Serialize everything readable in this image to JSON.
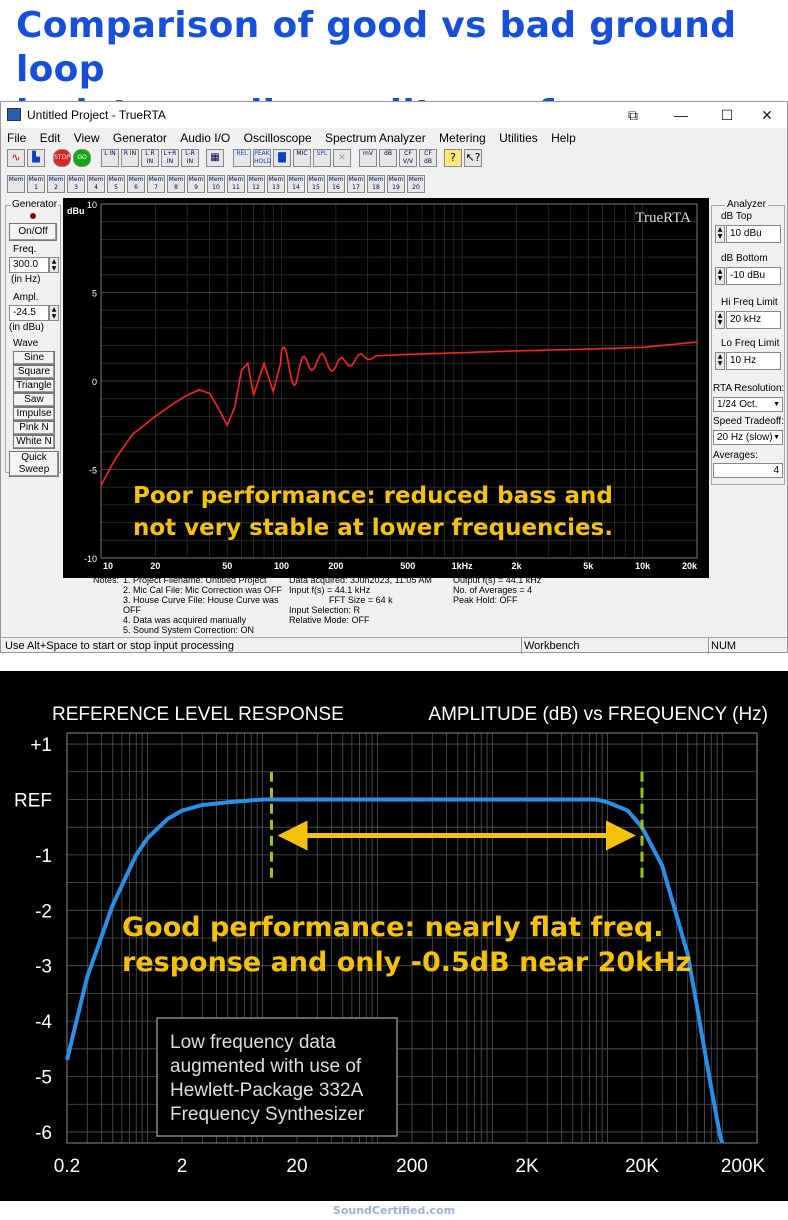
{
  "headline": {
    "line1": "Comparison of good vs bad ground loop",
    "line2": "isolator audio quality performance"
  },
  "window": {
    "title": "Untitled Project - TrueRTA",
    "controls": {
      "minimize": "—",
      "maximize": "☐",
      "close": "✕"
    },
    "menu": [
      "File",
      "Edit",
      "View",
      "Generator",
      "Audio I/O",
      "Oscilloscope",
      "Spectrum Analyzer",
      "Metering",
      "Utilities",
      "Help"
    ],
    "toolbar": [
      "L IN",
      "R IN",
      "L R IN",
      "L+R IN",
      "L-R IN",
      "REL",
      "PEAK HOLD",
      "SPL",
      "mV",
      "dB",
      "CF V/V",
      "CF dB"
    ],
    "mem_buttons": [
      "Mem",
      "Mem 1",
      "Mem 2",
      "Mem 3",
      "Mem 4",
      "Mem 5",
      "Mem 6",
      "Mem 7",
      "Mem 8",
      "Mem 9",
      "Mem 10",
      "Mem 11",
      "Mem 12",
      "Mem 13",
      "Mem 14",
      "Mem 15",
      "Mem 16",
      "Mem 17",
      "Mem 18",
      "Mem 19",
      "Mem 20"
    ],
    "generator": {
      "title": "Generator",
      "onoff": "On/Off",
      "freq_label": "Freq.",
      "freq_value": "300.0",
      "freq_unit": "(in Hz)",
      "ampl_label": "Ampl.",
      "ampl_value": "-24.5",
      "ampl_unit": "(in dBu)",
      "wave_label": "Wave",
      "waves": [
        "Sine",
        "Square",
        "Triangle",
        "Saw",
        "Impulse",
        "Pink N",
        "White N"
      ],
      "quick_sweep": "Quick Sweep"
    },
    "analyzer": {
      "title": "Analyzer",
      "db_top_label": "dB Top",
      "db_top": "10 dBu",
      "db_bottom_label": "dB Bottom",
      "db_bottom": "-10 dBu",
      "hi_freq_label": "Hi Freq Limit",
      "hi_freq": "20 kHz",
      "lo_freq_label": "Lo Freq Limit",
      "lo_freq": "10 Hz",
      "rta_res_label": "RTA Resolution:",
      "rta_res": "1/24 Oct.",
      "speed_label": "Speed Tradeoff:",
      "speed": "20 Hz (slow)",
      "averages_label": "Averages:",
      "averages": "4"
    },
    "plot": {
      "ylabel": "dBu",
      "brand": "TrueRTA",
      "yticks": [
        "10",
        "5",
        "0",
        "-5",
        "-10"
      ],
      "xticks": [
        "10",
        "20",
        "50",
        "100",
        "200",
        "500",
        "1kHz",
        "2k",
        "5k",
        "10k",
        "20k"
      ],
      "annotation_line1": "Poor performance: reduced bass and",
      "annotation_line2": "not very stable at lower frequencies.",
      "trace_color": "#ff2222"
    },
    "notes": {
      "label": "Notes:",
      "col1": [
        "1. Project Filename: Untitled Project",
        "2. Mic Cal File: Mic Correction was OFF",
        "3. House Curve File: House Curve was OFF",
        "4. Data was acquired manually",
        "5. Sound System Correction: ON"
      ],
      "col2": [
        "Data acquired: 3Jun2023, 11:05 AM",
        "Input f(s) = 44.1 kHz",
        "FFT Size = 64 k",
        "Input Selection: R",
        "Relative Mode:  OFF"
      ],
      "col3": [
        "",
        "Output f(s) = 44.1 kHz",
        "",
        "No. of Averages = 4",
        "Peak Hold: OFF"
      ]
    },
    "status": {
      "hint": "Use Alt+Space to start or stop input processing",
      "workbench": "Workbench",
      "num": "NUM"
    }
  },
  "chart_data": [
    {
      "type": "line",
      "title": "",
      "xlabel": "",
      "ylabel": "dBu",
      "x_scale": "log",
      "xlim": [
        10,
        20000
      ],
      "ylim": [
        -10,
        10
      ],
      "grid": true,
      "series": [
        {
          "x": [
            10,
            12,
            15,
            20,
            25,
            30,
            35,
            40,
            45,
            50,
            55,
            60,
            65,
            70,
            80,
            90,
            100,
            120,
            150,
            200,
            300,
            500,
            1000,
            2000,
            5000,
            10000,
            20000
          ],
          "y": [
            -5.9,
            -4.4,
            -3.0,
            -2.0,
            -1.3,
            -0.8,
            -0.5,
            -0.7,
            -1.6,
            -2.5,
            -1.5,
            0.6,
            1.0,
            -0.8,
            1.0,
            -0.6,
            1.2,
            0.4,
            1.2,
            0.9,
            1.4,
            1.5,
            1.6,
            1.7,
            1.8,
            1.9,
            2.2
          ]
        }
      ]
    },
    {
      "type": "line",
      "title": "REFERENCE LEVEL RESPONSE",
      "subtitle": "AMPLITUDE (dB) vs FREQUENCY (Hz)",
      "xlabel": "",
      "ylabel": "",
      "x_scale": "log",
      "xlim": [
        0.2,
        200000
      ],
      "ylim": [
        -6.2,
        1.2
      ],
      "xticks": [
        "0.2",
        "2",
        "20",
        "200",
        "2K",
        "20K",
        "200K"
      ],
      "yticks": [
        "+1",
        "REF",
        "-1",
        "-2",
        "-3",
        "-4",
        "-5",
        "-6"
      ],
      "grid": true,
      "annotation_line1": "Good performance: nearly flat freq.",
      "annotation_line2": "response and only -0.5dB near 20kHz",
      "note_box": [
        "Low frequency data",
        "augmented with use of",
        "Hewlett-Package 332A",
        "Frequency Synthesizer"
      ],
      "series": [
        {
          "x": [
            0.2,
            0.3,
            0.5,
            0.8,
            1,
            1.5,
            2,
            3,
            5,
            10,
            20,
            100,
            1000,
            5000,
            8000,
            10000,
            15000,
            20000,
            30000,
            50000,
            80000,
            100000
          ],
          "y": [
            -4.7,
            -3.2,
            -1.9,
            -1.0,
            -0.7,
            -0.35,
            -0.2,
            -0.1,
            -0.05,
            0,
            0,
            0,
            0,
            0,
            0,
            -0.05,
            -0.2,
            -0.5,
            -1.2,
            -2.8,
            -5.2,
            -6.3
          ]
        }
      ],
      "markers_hz": [
        12,
        20000
      ],
      "colors": {
        "trace": "#2a8fe6",
        "markers": "#9ac21a",
        "annotation": "#f4c20d"
      }
    }
  ],
  "footer": "SoundCertified.com"
}
